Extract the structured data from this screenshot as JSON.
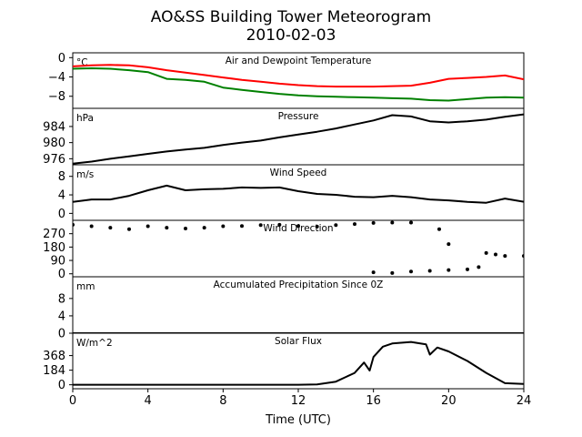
{
  "title": "AO&SS Building Tower Meteorogram",
  "subtitle": "2010-02-03",
  "xlabel": "Time (UTC)",
  "x_ticks": [
    "0",
    "4",
    "8",
    "12",
    "16",
    "20",
    "24"
  ],
  "chart_data": [
    {
      "type": "line",
      "title": "Air and Dewpoint Temperature",
      "ylabel": "°C",
      "xlim": [
        0,
        24
      ],
      "ylim": [
        -10.5,
        1
      ],
      "yticks": [
        0,
        -4,
        -8
      ],
      "ytick_labels": [
        "0",
        "−4",
        "−8"
      ],
      "colors": [
        "#ff0000",
        "#008000"
      ],
      "series": [
        {
          "values": [
            [
              0,
              -1.8
            ],
            [
              1,
              -1.6
            ],
            [
              2,
              -1.5
            ],
            [
              3,
              -1.6
            ],
            [
              4,
              -2.0
            ],
            [
              5,
              -2.6
            ],
            [
              6,
              -3.1
            ],
            [
              7,
              -3.6
            ],
            [
              8,
              -4.1
            ],
            [
              9,
              -4.6
            ],
            [
              10,
              -5.0
            ],
            [
              11,
              -5.4
            ],
            [
              12,
              -5.7
            ],
            [
              13,
              -5.9
            ],
            [
              14,
              -6.0
            ],
            [
              15,
              -6.0
            ],
            [
              16,
              -6.0
            ],
            [
              17,
              -5.9
            ],
            [
              18,
              -5.8
            ],
            [
              19,
              -5.2
            ],
            [
              20,
              -4.4
            ],
            [
              21,
              -4.2
            ],
            [
              22,
              -4.0
            ],
            [
              23,
              -3.7
            ],
            [
              24,
              -4.5
            ]
          ]
        },
        {
          "values": [
            [
              0,
              -2.3
            ],
            [
              1,
              -2.2
            ],
            [
              2,
              -2.3
            ],
            [
              3,
              -2.6
            ],
            [
              4,
              -3.0
            ],
            [
              5,
              -4.4
            ],
            [
              6,
              -4.6
            ],
            [
              7,
              -5.0
            ],
            [
              8,
              -6.2
            ],
            [
              9,
              -6.7
            ],
            [
              10,
              -7.1
            ],
            [
              11,
              -7.5
            ],
            [
              12,
              -7.8
            ],
            [
              13,
              -8.0
            ],
            [
              14,
              -8.1
            ],
            [
              15,
              -8.2
            ],
            [
              16,
              -8.3
            ],
            [
              17,
              -8.4
            ],
            [
              18,
              -8.5
            ],
            [
              19,
              -8.8
            ],
            [
              20,
              -8.9
            ],
            [
              21,
              -8.6
            ],
            [
              22,
              -8.3
            ],
            [
              23,
              -8.2
            ],
            [
              24,
              -8.3
            ]
          ]
        }
      ]
    },
    {
      "type": "line",
      "title": "Pressure",
      "ylabel": "hPa",
      "xlim": [
        0,
        24
      ],
      "ylim": [
        974.5,
        988.5
      ],
      "yticks": [
        976,
        980,
        984
      ],
      "ytick_labels": [
        "976",
        "980",
        "984"
      ],
      "colors": [
        "#000000"
      ],
      "series": [
        {
          "values": [
            [
              0,
              974.8
            ],
            [
              1,
              975.3
            ],
            [
              2,
              976.0
            ],
            [
              3,
              976.6
            ],
            [
              4,
              977.2
            ],
            [
              5,
              977.8
            ],
            [
              6,
              978.3
            ],
            [
              7,
              978.7
            ],
            [
              8,
              979.4
            ],
            [
              9,
              980.0
            ],
            [
              10,
              980.5
            ],
            [
              11,
              981.3
            ],
            [
              12,
              982.0
            ],
            [
              13,
              982.7
            ],
            [
              14,
              983.5
            ],
            [
              15,
              984.5
            ],
            [
              16,
              985.5
            ],
            [
              17,
              986.8
            ],
            [
              18,
              986.5
            ],
            [
              19,
              985.3
            ],
            [
              20,
              985.0
            ],
            [
              21,
              985.3
            ],
            [
              22,
              985.7
            ],
            [
              23,
              986.4
            ],
            [
              24,
              987.0
            ]
          ]
        }
      ]
    },
    {
      "type": "line",
      "title": "Wind Speed",
      "ylabel": "m/s",
      "xlim": [
        0,
        24
      ],
      "ylim": [
        -1.5,
        10.5
      ],
      "yticks": [
        0,
        4,
        8
      ],
      "ytick_labels": [
        "0",
        "4",
        "8"
      ],
      "colors": [
        "#000000"
      ],
      "series": [
        {
          "values": [
            [
              0,
              2.5
            ],
            [
              1,
              3.0
            ],
            [
              2,
              3.0
            ],
            [
              3,
              3.8
            ],
            [
              4,
              5.0
            ],
            [
              5,
              6.0
            ],
            [
              6,
              5.0
            ],
            [
              7,
              5.2
            ],
            [
              8,
              5.3
            ],
            [
              9,
              5.6
            ],
            [
              10,
              5.5
            ],
            [
              11,
              5.6
            ],
            [
              12,
              4.8
            ],
            [
              13,
              4.2
            ],
            [
              14,
              4.0
            ],
            [
              15,
              3.6
            ],
            [
              16,
              3.5
            ],
            [
              17,
              3.8
            ],
            [
              18,
              3.5
            ],
            [
              19,
              3.0
            ],
            [
              20,
              2.8
            ],
            [
              21,
              2.5
            ],
            [
              22,
              2.3
            ],
            [
              23,
              3.2
            ],
            [
              24,
              2.5
            ]
          ]
        }
      ]
    },
    {
      "type": "scatter",
      "title": "Wind Direction",
      "ylabel": "",
      "xlim": [
        0,
        24
      ],
      "ylim": [
        -20,
        360
      ],
      "yticks": [
        0,
        90,
        180,
        270
      ],
      "ytick_labels": [
        "0",
        "90",
        "180",
        "270"
      ],
      "colors": [
        "#000000"
      ],
      "series": [
        {
          "values": [
            [
              0,
              330
            ],
            [
              1,
              320
            ],
            [
              2,
              310
            ],
            [
              3,
              300
            ],
            [
              4,
              320
            ],
            [
              5,
              310
            ],
            [
              6,
              305
            ],
            [
              7,
              310
            ],
            [
              8,
              320
            ],
            [
              9,
              322
            ],
            [
              10,
              328
            ],
            [
              11,
              330
            ],
            [
              12,
              322
            ],
            [
              13,
              318
            ],
            [
              14,
              328
            ],
            [
              15,
              335
            ],
            [
              16,
              342
            ],
            [
              17,
              345
            ],
            [
              18,
              345
            ],
            [
              19.5,
              300
            ],
            [
              20,
              200
            ],
            [
              16,
              10
            ],
            [
              17,
              5
            ],
            [
              18,
              15
            ],
            [
              19,
              20
            ],
            [
              20,
              25
            ],
            [
              21,
              30
            ],
            [
              21.6,
              45
            ],
            [
              22,
              140
            ],
            [
              22.5,
              130
            ],
            [
              23,
              120
            ],
            [
              24,
              120
            ]
          ]
        }
      ]
    },
    {
      "type": "line",
      "title": "Accumulated Precipitation Since 0Z",
      "ylabel": "mm",
      "xlim": [
        0,
        24
      ],
      "ylim": [
        0,
        13
      ],
      "yticks": [
        0,
        4,
        8
      ],
      "ytick_labels": [
        "0",
        "4",
        "8"
      ],
      "colors": [
        "#000000"
      ],
      "series": [
        {
          "values": [
            [
              0,
              0
            ],
            [
              24,
              0
            ]
          ]
        }
      ]
    },
    {
      "type": "line",
      "title": "Solar Flux",
      "ylabel": "W/m^2",
      "xlim": [
        0,
        24
      ],
      "ylim": [
        -50,
        650
      ],
      "yticks": [
        0,
        184,
        368
      ],
      "ytick_labels": [
        "0",
        "184",
        "368"
      ],
      "colors": [
        "#000000"
      ],
      "series": [
        {
          "values": [
            [
              0,
              0
            ],
            [
              6,
              0
            ],
            [
              12,
              0
            ],
            [
              13,
              5
            ],
            [
              14,
              40
            ],
            [
              15,
              150
            ],
            [
              15.5,
              280
            ],
            [
              15.8,
              180
            ],
            [
              16,
              350
            ],
            [
              16.5,
              480
            ],
            [
              17,
              520
            ],
            [
              18,
              540
            ],
            [
              18.8,
              510
            ],
            [
              19,
              380
            ],
            [
              19.4,
              470
            ],
            [
              20,
              420
            ],
            [
              21,
              300
            ],
            [
              22,
              150
            ],
            [
              23,
              20
            ],
            [
              24,
              10
            ]
          ]
        }
      ]
    }
  ]
}
